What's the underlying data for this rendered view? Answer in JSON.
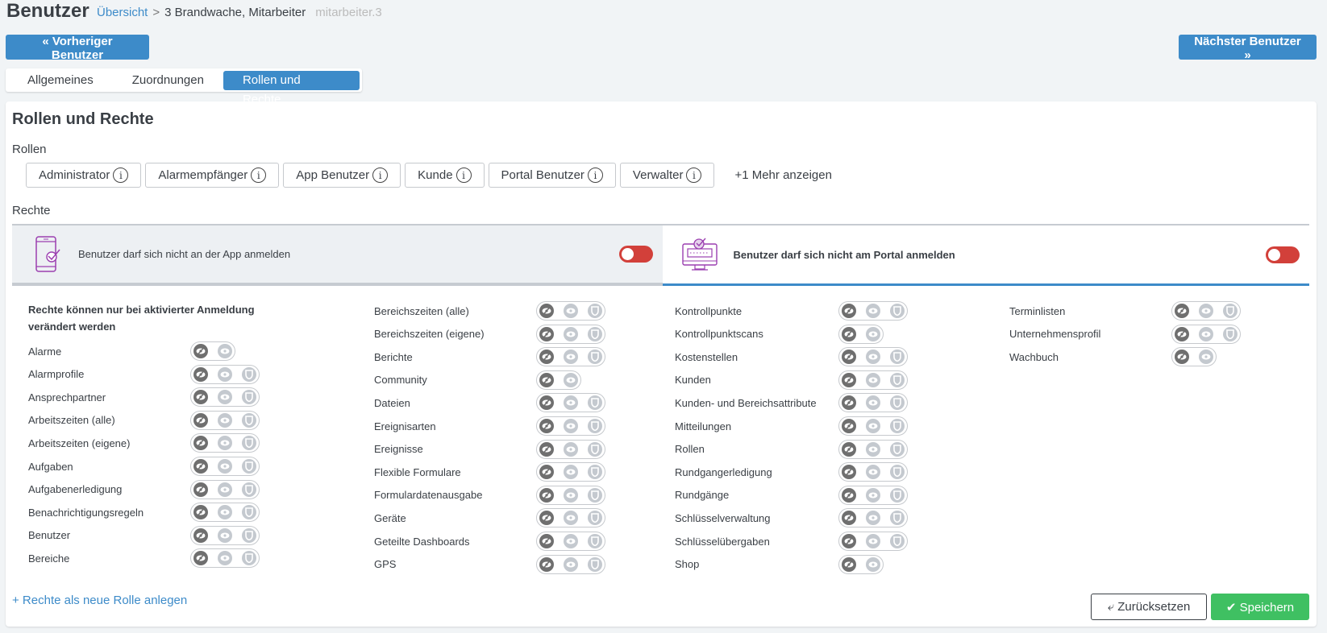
{
  "header": {
    "title": "Benutzer",
    "breadcrumb": {
      "overview": "Übersicht",
      "current": "3 Brandwache, Mitarbeiter",
      "username": "mitarbeiter.3"
    }
  },
  "nav": {
    "prev": "« Vorheriger Benutzer",
    "next": "Nächster Benutzer »"
  },
  "tabs": [
    {
      "label": "Allgemeines"
    },
    {
      "label": "Zuordnungen"
    },
    {
      "label": "Rollen und Rechte",
      "active": true
    }
  ],
  "section": {
    "title": "Rollen und Rechte",
    "roles_label": "Rollen",
    "rights_label": "Rechte"
  },
  "roles": [
    "Administrator",
    "Alarmempfänger",
    "App Benutzer",
    "Kunde",
    "Portal Benutzer",
    "Verwalter"
  ],
  "roles_more": "+1 Mehr anzeigen",
  "login": {
    "app": {
      "label": "Benutzer darf sich nicht an der App anmelden",
      "enabled": false
    },
    "portal": {
      "label": "Benutzer darf sich nicht am Portal anmelden",
      "enabled": false,
      "selected": true
    }
  },
  "rights_note": [
    "Rechte können nur bei aktivierter Anmeldung",
    "verändert werden"
  ],
  "rights_columns": [
    [
      {
        "name": "Alarme",
        "icons": 2
      },
      {
        "name": "Alarmprofile",
        "icons": 3
      },
      {
        "name": "Ansprechpartner",
        "icons": 3
      },
      {
        "name": "Arbeitszeiten (alle)",
        "icons": 3
      },
      {
        "name": "Arbeitszeiten (eigene)",
        "icons": 3
      },
      {
        "name": "Aufgaben",
        "icons": 3
      },
      {
        "name": "Aufgabenerledigung",
        "icons": 3
      },
      {
        "name": "Benachrichtigungsregeln",
        "icons": 3
      },
      {
        "name": "Benutzer",
        "icons": 3
      },
      {
        "name": "Bereiche",
        "icons": 3
      }
    ],
    [
      {
        "name": "Bereichszeiten (alle)",
        "icons": 3
      },
      {
        "name": "Bereichszeiten (eigene)",
        "icons": 3
      },
      {
        "name": "Berichte",
        "icons": 3
      },
      {
        "name": "Community",
        "icons": 2
      },
      {
        "name": "Dateien",
        "icons": 3
      },
      {
        "name": "Ereignisarten",
        "icons": 3
      },
      {
        "name": "Ereignisse",
        "icons": 3
      },
      {
        "name": "Flexible Formulare",
        "icons": 3
      },
      {
        "name": "Formulardatenausgabe",
        "icons": 3
      },
      {
        "name": "Geräte",
        "icons": 3
      },
      {
        "name": "Geteilte Dashboards",
        "icons": 3
      },
      {
        "name": "GPS",
        "icons": 3
      }
    ],
    [
      {
        "name": "Kontrollpunkte",
        "icons": 3
      },
      {
        "name": "Kontrollpunktscans",
        "icons": 2
      },
      {
        "name": "Kostenstellen",
        "icons": 3
      },
      {
        "name": "Kunden",
        "icons": 3
      },
      {
        "name": "Kunden- und Bereichsattribute",
        "icons": 3
      },
      {
        "name": "Mitteilungen",
        "icons": 3
      },
      {
        "name": "Rollen",
        "icons": 3
      },
      {
        "name": "Rundgangerledigung",
        "icons": 3
      },
      {
        "name": "Rundgänge",
        "icons": 3
      },
      {
        "name": "Schlüsselverwaltung",
        "icons": 3
      },
      {
        "name": "Schlüsselübergaben",
        "icons": 3
      },
      {
        "name": "Shop",
        "icons": 2
      }
    ],
    [
      {
        "name": "Terminlisten",
        "icons": 3
      },
      {
        "name": "Unternehmensprofil",
        "icons": 3
      },
      {
        "name": "Wachbuch",
        "icons": 2
      }
    ]
  ],
  "icons": {
    "levels": [
      "eye-slash-icon",
      "eye-icon",
      "shield-icon"
    ]
  },
  "actions": {
    "add_role": "+ Rechte als neue Rolle anlegen",
    "reset": "Zurücksetzen",
    "save": "Speichern"
  },
  "colors": {
    "accent": "#3d8bc9",
    "save": "#3fc062",
    "toggle_off": "#d2403a",
    "icon_purple": "#9b3fb0"
  }
}
